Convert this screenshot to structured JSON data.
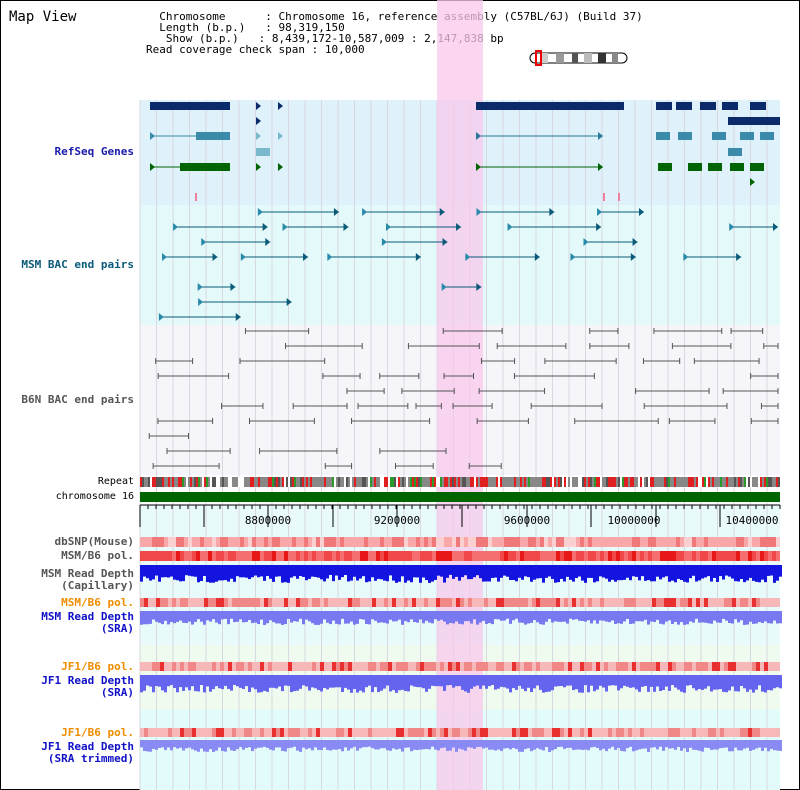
{
  "page": {
    "title": "Map View"
  },
  "header": {
    "chromosome_key": "Chromosome",
    "chromosome_value": "Chromosome 16, reference assembly (C57BL/6J) (Build 37)",
    "length_key": "Length (b.p.)",
    "length_value": "98,319,150",
    "show_key": "Show (b.p.)",
    "show_value": "8,439,172-10,587,009 : 2,147,838 bp",
    "span_key": "Read coverage check span",
    "span_value": "10,000"
  },
  "tracks": {
    "refseq": "RefSeq Genes",
    "msm_bac": "MSM BAC end pairs",
    "b6n_bac": "B6N BAC end pairs",
    "repeat": "Repeat",
    "chromosome": "chromosome 16",
    "dbsnp": "dbSNP(Mouse)",
    "msm_b6_pol_1": "MSM/B6 pol.",
    "msm_depth_cap_1": "MSM Read Depth",
    "msm_depth_cap_2": "(Capillary)",
    "msm_b6_pol_2": "MSM/B6 pol.",
    "msm_depth_sra_1": "MSM Read Depth",
    "msm_depth_sra_2": "(SRA)",
    "jf1_b6_pol_1": "JF1/B6 pol.",
    "jf1_depth_sra_1": "JF1 Read Depth",
    "jf1_depth_sra_2": "(SRA)",
    "jf1_b6_pol_2": "JF1/B6 pol.",
    "jf1_depth_trim_1": "JF1 Read Depth",
    "jf1_depth_trim_2": "(SRA trimmed)"
  },
  "axis": {
    "ticks": [
      "8800000",
      "9200000",
      "9600000",
      "10000000",
      "10400000"
    ]
  },
  "colors": {
    "refseq_label": "#1a1aa8",
    "msm_bac_label": "#0a5a78",
    "b6n_label": "#555555",
    "pol_orange": "#f08c00",
    "depth_blue": "#1010c8",
    "highlight": "#f8c8ec"
  }
}
